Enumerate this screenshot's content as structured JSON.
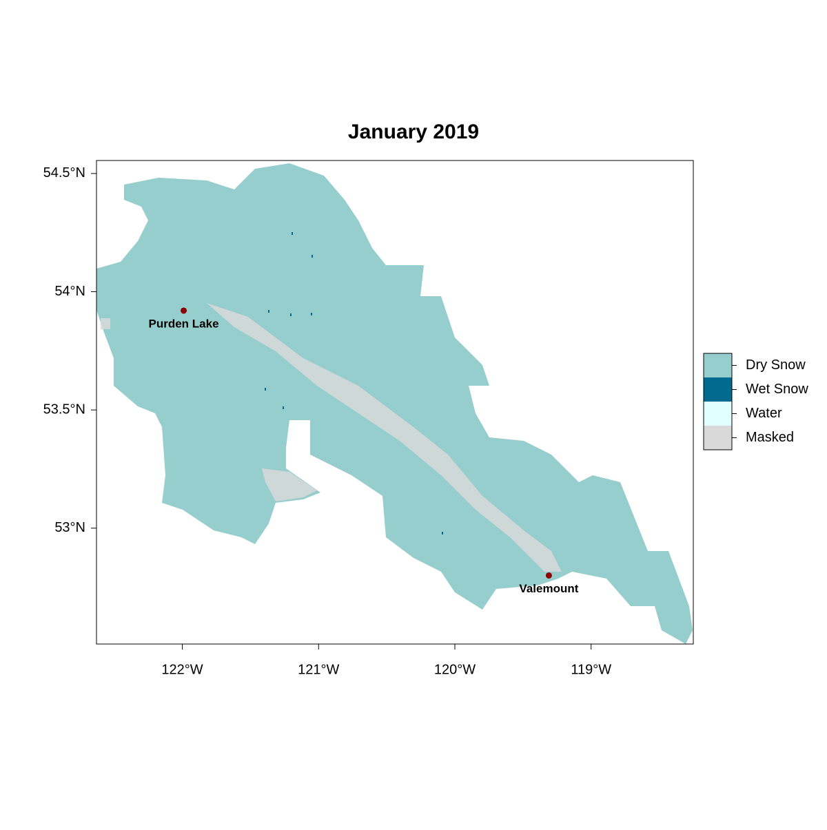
{
  "chart_data": {
    "type": "map",
    "title": "January 2019",
    "xlim": [
      -122.63,
      -118.25
    ],
    "ylim": [
      52.51,
      54.555
    ],
    "xticks": [
      {
        "value": -122,
        "label": "122°W"
      },
      {
        "value": -121,
        "label": "121°W"
      },
      {
        "value": -120,
        "label": "120°W"
      },
      {
        "value": -119,
        "label": "119°W"
      }
    ],
    "yticks": [
      {
        "value": 53,
        "label": "53°N"
      },
      {
        "value": 53.5,
        "label": "53.5°N"
      },
      {
        "value": 54,
        "label": "54°N"
      },
      {
        "value": 54.5,
        "label": "54.5°N"
      }
    ],
    "legend": [
      {
        "name": "Dry Snow",
        "color": "#96cdcd"
      },
      {
        "name": "Wet Snow",
        "color": "#006b8f"
      },
      {
        "name": "Water",
        "color": "#e0ffff"
      },
      {
        "name": "Masked",
        "color": "#d9d9d9"
      }
    ],
    "places": [
      {
        "name": "Purden Lake",
        "lon": -121.99,
        "lat": 53.92
      },
      {
        "name": "Valemount",
        "lon": -119.31,
        "lat": 52.8
      }
    ],
    "point_color": "#8b0000"
  }
}
